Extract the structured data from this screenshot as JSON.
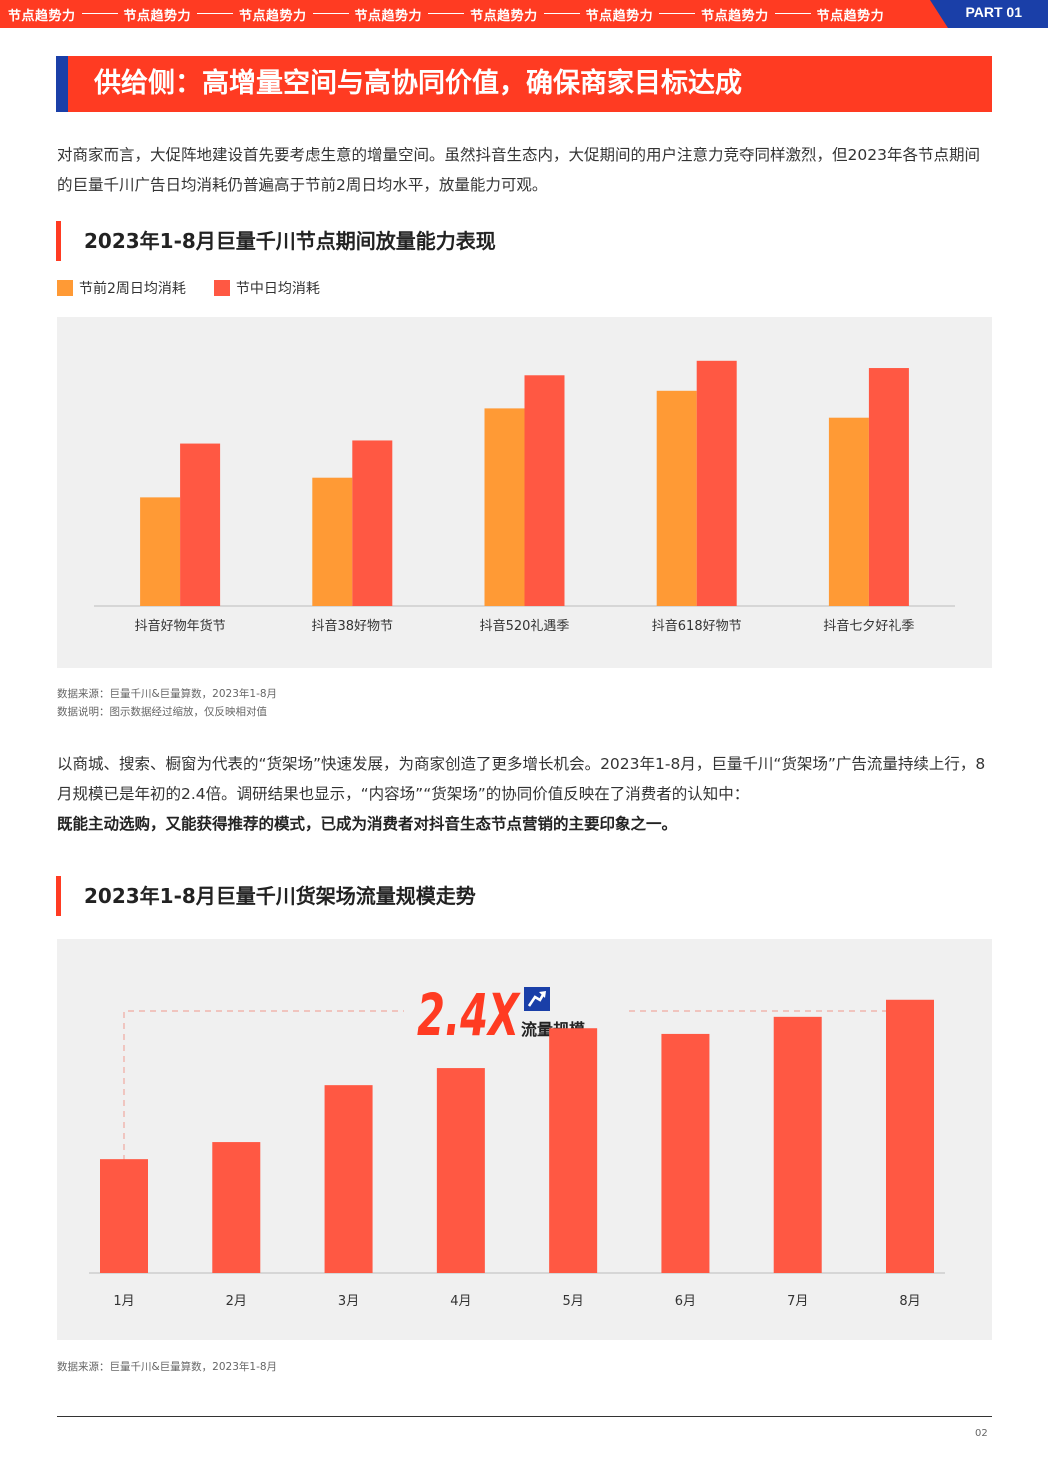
{
  "header": {
    "tabs": [
      "节点趋势力",
      "节点趋势力",
      "节点趋势力",
      "节点趋势力",
      "节点趋势力",
      "节点趋势力",
      "节点趋势力",
      "节点趋势力"
    ],
    "part_label": "PART 01"
  },
  "page_title": "供给侧：高增量空间与高协同价值，确保商家目标达成",
  "intro_text": "对商家而言，大促阵地建设首先要考虑生意的增量空间。虽然抖音生态内，大促期间的用户注意力竞夺同样激烈，但2023年各节点期间的巨量千川广告日均消耗仍普遍高于节前2周日均水平，放量能力可观。",
  "section1": {
    "title": "2023年1-8月巨量千川节点期间放量能力表现",
    "legend": [
      "节前2周日均消耗",
      "节中日均消耗"
    ],
    "source": "数据来源：巨量千川&巨量算数，2023年1-8月",
    "note": "数据说明：图示数据经过缩放，仅反映相对值"
  },
  "middle_text": {
    "line1": "以商城、搜索、橱窗为代表的“货架场”快速发展，为商家创造了更多增长机会。2023年1-8月，巨量千川“货架场”广告流量持续上行，8月规模已是年初的2.4倍。调研结果也显示，“内容场”“货架场”的协同价值反映在了消费者的认知中：",
    "bold": "既能主动选购，又能获得推荐的模式，已成为消费者对抖音生态节点营销的主要印象之一。"
  },
  "section2": {
    "title": "2023年1-8月巨量千川货架场流量规模走势",
    "callout_value": "2.4X",
    "callout_label": "流量规模",
    "source": "数据来源：巨量千川&巨量算数，2023年1-8月"
  },
  "page_number": "02",
  "colors": {
    "accent_red": "#ff3b22",
    "bar_orange": "#ff9a35",
    "bar_red": "#ff5843",
    "navy": "#1a3fa8",
    "chart_bg": "#f0f0f0"
  },
  "chart_data": [
    {
      "type": "bar",
      "title": "2023年1-8月巨量千川节点期间放量能力表现",
      "categories": [
        "抖音好物年货节",
        "抖音38好物节",
        "抖音520礼遇季",
        "抖音618好物节",
        "抖音七夕好礼季"
      ],
      "series": [
        {
          "name": "节前2周日均消耗",
          "values": [
            105,
            124,
            191,
            208,
            182
          ]
        },
        {
          "name": "节中日均消耗",
          "values": [
            157,
            160,
            223,
            237,
            230
          ]
        }
      ],
      "ylim": [
        0,
        260
      ],
      "grid": false,
      "legend": "top-left"
    },
    {
      "type": "bar",
      "title": "2023年1-8月巨量千川货架场流量规模走势",
      "categories": [
        "1月",
        "2月",
        "3月",
        "4月",
        "5月",
        "6月",
        "7月",
        "8月"
      ],
      "values": [
        1.0,
        1.15,
        1.65,
        1.8,
        2.15,
        2.1,
        2.25,
        2.4
      ],
      "ylim": [
        0,
        2.6
      ],
      "grid": false
    }
  ]
}
